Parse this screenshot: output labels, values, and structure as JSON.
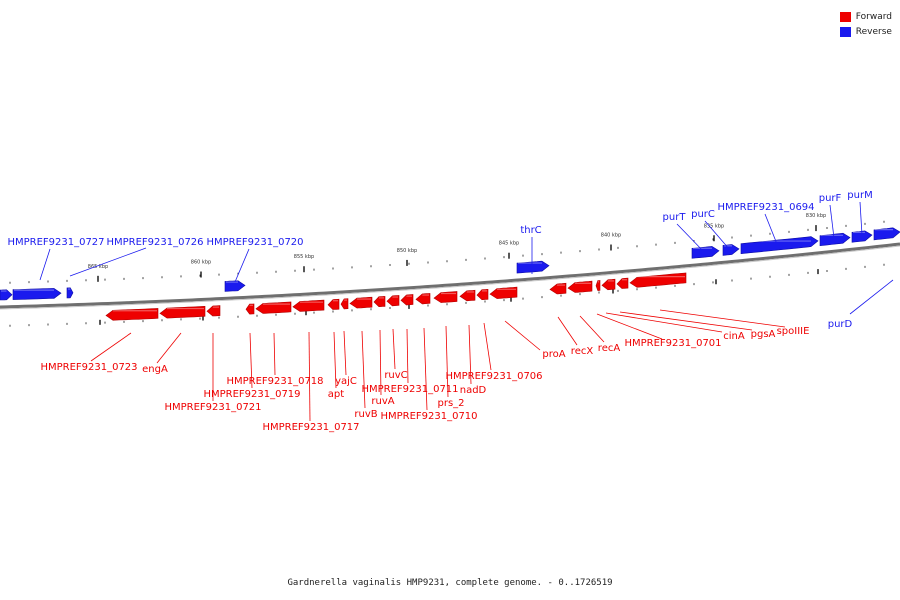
{
  "legend": {
    "forward_label": "Forward",
    "reverse_label": "Reverse",
    "forward_color": "#ee0000",
    "reverse_color": "#1a1aee"
  },
  "caption": "Gardnerella vaginalis HMP9231, complete genome. - 0..1726519",
  "scale_ticks": [
    "865 kbp",
    "860 kbp",
    "855 kbp",
    "850 kbp",
    "845 kbp",
    "840 kbp",
    "835 kbp",
    "830 kbp"
  ],
  "forward_labels": [
    "HMPREF9231_0723",
    "engA",
    "HMPREF9231_0721",
    "HMPREF9231_0719",
    "HMPREF9231_0718",
    "HMPREF9231_0717",
    "apt",
    "yajC",
    "ruvB",
    "ruvA",
    "ruvC",
    "HMPREF9231_0711",
    "HMPREF9231_0710",
    "prs_2",
    "nadD",
    "HMPREF9231_0706",
    "proA",
    "recX",
    "recA",
    "HMPREF9231_0701",
    "cinA",
    "pgsA",
    "spoIIIE"
  ],
  "reverse_labels": [
    "HMPREF9231_0727",
    "HMPREF9231_0726",
    "HMPREF9231_0720",
    "thrC",
    "purT",
    "purC",
    "HMPREF9231_0694",
    "purF",
    "purM",
    "purD"
  ]
}
